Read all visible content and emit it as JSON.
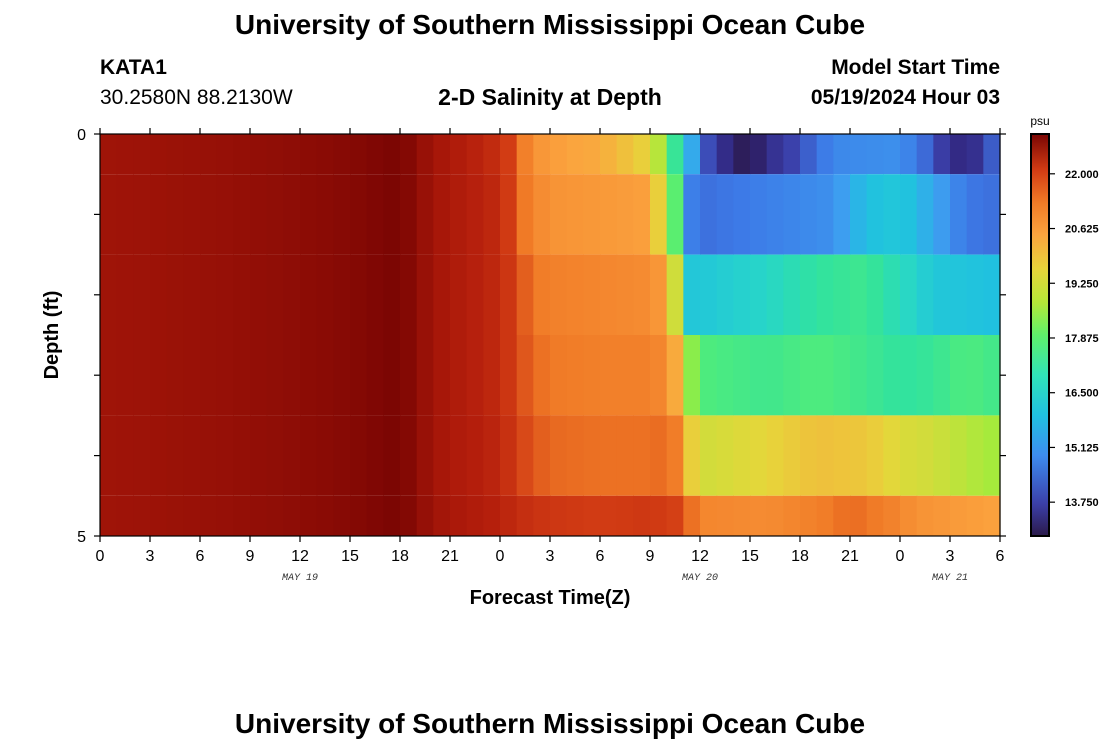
{
  "header": {
    "title": "University of Southern Mississippi Ocean Cube",
    "station_id": "KATA1",
    "station_coords": "30.2580N  88.2130W",
    "chart_title": "2-D Salinity at Depth",
    "model_start_label": "Model Start Time",
    "model_start_value": "05/19/2024 Hour 03"
  },
  "footer": {
    "title": "University of Southern Mississippi Ocean Cube"
  },
  "chart_data": {
    "type": "heatmap",
    "title": "2-D Salinity at Depth",
    "xlabel": "Forecast Time(Z)",
    "ylabel": "Depth (ft)",
    "colorbar_unit": "psu",
    "x_tick_labels": [
      "0",
      "3",
      "6",
      "9",
      "12",
      "15",
      "18",
      "21",
      "0",
      "3",
      "6",
      "9",
      "12",
      "15",
      "18",
      "21",
      "0",
      "3",
      "6"
    ],
    "x_range_hours": [
      0,
      54
    ],
    "date_labels": [
      {
        "label": "MAY 19",
        "hour": 12
      },
      {
        "label": "MAY 20",
        "hour": 36
      },
      {
        "label": "MAY 21",
        "hour": 51
      }
    ],
    "y_tick_labels": [
      "0",
      "5"
    ],
    "y_range": [
      0,
      5
    ],
    "colorbar_ticks": [
      "22.000",
      "20.625",
      "19.250",
      "17.875",
      "16.500",
      "15.125",
      "13.750"
    ],
    "value_range": [
      12.9,
      23.0
    ],
    "depth_layers": [
      {
        "top": 0.0,
        "bottom": 0.5,
        "keys": [
          [
            0,
            22.5
          ],
          [
            6,
            22.6
          ],
          [
            14,
            22.8
          ],
          [
            18,
            23.0
          ],
          [
            21,
            22.2
          ],
          [
            24,
            21.6
          ],
          [
            25,
            21.0
          ],
          [
            26,
            19.8
          ],
          [
            28,
            19.3
          ],
          [
            30,
            19.2
          ],
          [
            33,
            18.6
          ],
          [
            34,
            17.8
          ],
          [
            35,
            16.0
          ],
          [
            36,
            14.5
          ],
          [
            37,
            13.8
          ],
          [
            38,
            13.2
          ],
          [
            39,
            12.9
          ],
          [
            40,
            13.5
          ],
          [
            42,
            14.2
          ],
          [
            44,
            14.8
          ],
          [
            48,
            14.9
          ],
          [
            50,
            14.3
          ],
          [
            51,
            13.6
          ],
          [
            52,
            13.3
          ],
          [
            53,
            13.9
          ],
          [
            54,
            14.7
          ]
        ]
      },
      {
        "top": 0.5,
        "bottom": 1.5,
        "keys": [
          [
            0,
            22.5
          ],
          [
            6,
            22.6
          ],
          [
            14,
            22.8
          ],
          [
            18,
            23.0
          ],
          [
            21,
            22.2
          ],
          [
            24,
            21.7
          ],
          [
            25,
            21.0
          ],
          [
            26,
            20.2
          ],
          [
            27,
            19.8
          ],
          [
            30,
            19.6
          ],
          [
            33,
            19.4
          ],
          [
            34,
            18.0
          ],
          [
            34.6,
            17.2
          ],
          [
            35.2,
            14.8
          ],
          [
            36,
            14.5
          ],
          [
            40,
            14.7
          ],
          [
            44,
            14.9
          ],
          [
            46,
            15.6
          ],
          [
            48,
            15.8
          ],
          [
            50,
            15.2
          ],
          [
            52,
            14.6
          ],
          [
            54,
            14.5
          ]
        ]
      },
      {
        "top": 1.5,
        "bottom": 2.5,
        "keys": [
          [
            0,
            22.5
          ],
          [
            6,
            22.6
          ],
          [
            14,
            22.8
          ],
          [
            18,
            23.0
          ],
          [
            21,
            22.2
          ],
          [
            24,
            21.7
          ],
          [
            25,
            21.2
          ],
          [
            26,
            20.6
          ],
          [
            27,
            20.4
          ],
          [
            30,
            20.2
          ],
          [
            33,
            20.0
          ],
          [
            34,
            19.4
          ],
          [
            34.8,
            17.8
          ],
          [
            35.4,
            15.8
          ],
          [
            36,
            15.8
          ],
          [
            40,
            16.2
          ],
          [
            43,
            16.8
          ],
          [
            46,
            17.0
          ],
          [
            48,
            16.4
          ],
          [
            50,
            15.8
          ],
          [
            54,
            15.6
          ]
        ]
      },
      {
        "top": 2.5,
        "bottom": 3.5,
        "keys": [
          [
            0,
            22.5
          ],
          [
            6,
            22.6
          ],
          [
            14,
            22.8
          ],
          [
            18,
            23.0
          ],
          [
            21,
            22.2
          ],
          [
            24,
            21.7
          ],
          [
            25,
            21.2
          ],
          [
            26,
            20.8
          ],
          [
            27,
            20.6
          ],
          [
            30,
            20.4
          ],
          [
            33,
            20.4
          ],
          [
            34,
            20.0
          ],
          [
            35,
            18.4
          ],
          [
            36,
            17.2
          ],
          [
            40,
            17.0
          ],
          [
            43,
            17.2
          ],
          [
            46,
            17.0
          ],
          [
            48,
            16.8
          ],
          [
            50,
            16.9
          ],
          [
            52,
            17.2
          ],
          [
            54,
            17.0
          ]
        ]
      },
      {
        "top": 3.5,
        "bottom": 4.5,
        "keys": [
          [
            0,
            22.5
          ],
          [
            6,
            22.6
          ],
          [
            14,
            22.8
          ],
          [
            18,
            23.0
          ],
          [
            21,
            22.2
          ],
          [
            24,
            21.8
          ],
          [
            25,
            21.3
          ],
          [
            26,
            21.0
          ],
          [
            27,
            20.8
          ],
          [
            30,
            20.7
          ],
          [
            33,
            20.7
          ],
          [
            34,
            20.8
          ],
          [
            35,
            20.2
          ],
          [
            35.6,
            18.4
          ],
          [
            36,
            18.4
          ],
          [
            40,
            18.6
          ],
          [
            43,
            18.9
          ],
          [
            46,
            18.8
          ],
          [
            48,
            18.5
          ],
          [
            50,
            18.4
          ],
          [
            52,
            18.2
          ],
          [
            54,
            18.0
          ]
        ]
      },
      {
        "top": 4.5,
        "bottom": 5.0,
        "keys": [
          [
            0,
            22.5
          ],
          [
            6,
            22.6
          ],
          [
            14,
            22.8
          ],
          [
            18,
            23.0
          ],
          [
            21,
            22.3
          ],
          [
            24,
            21.9
          ],
          [
            26,
            21.5
          ],
          [
            30,
            21.3
          ],
          [
            33,
            21.4
          ],
          [
            35,
            21.2
          ],
          [
            36,
            20.2
          ],
          [
            40,
            20.0
          ],
          [
            43,
            20.4
          ],
          [
            45,
            20.8
          ],
          [
            47,
            20.5
          ],
          [
            49,
            19.8
          ],
          [
            51,
            19.6
          ],
          [
            54,
            19.3
          ]
        ]
      }
    ]
  }
}
